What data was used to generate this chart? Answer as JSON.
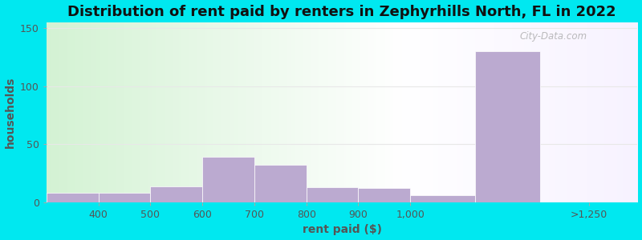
{
  "title": "Distribution of rent paid by renters in Zephyrhills North, FL in 2022",
  "xlabel": "rent paid ($)",
  "ylabel": "households",
  "bin_edges": [
    300,
    400,
    500,
    600,
    700,
    800,
    900,
    1000,
    1125,
    1250
  ],
  "bin_labels": [
    "400",
    "500",
    "600",
    "700",
    "800",
    "900",
    "1,000",
    ">1,250"
  ],
  "values": [
    8,
    8,
    14,
    39,
    32,
    13,
    12,
    6,
    130
  ],
  "bar_color": "#bbaad0",
  "bar_edgecolor": "#ffffff",
  "ylim": [
    0,
    155
  ],
  "yticks": [
    0,
    50,
    100,
    150
  ],
  "title_fontsize": 13,
  "label_fontsize": 10,
  "tick_fontsize": 9,
  "background_outer": "#00e8f0",
  "grid_color": "#e0e0e0",
  "watermark_text": "City-Data.com"
}
